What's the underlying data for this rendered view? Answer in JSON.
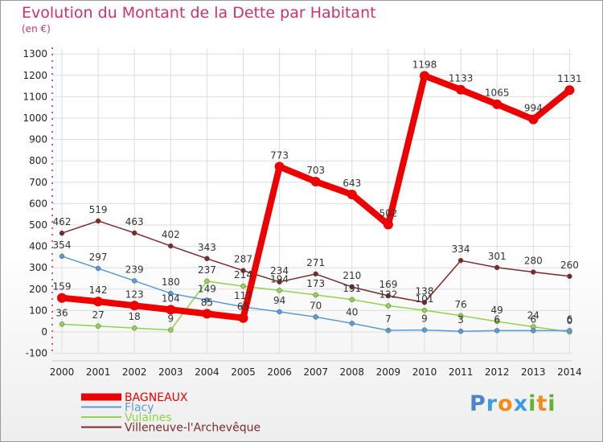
{
  "header": {
    "title": "Evolution du Montant de la Dette par Habitant",
    "unit": "(en €)"
  },
  "logo": {
    "text": "Proxiti",
    "letters": [
      {
        "ch": "P",
        "color": "#4a86c8"
      },
      {
        "ch": "r",
        "color": "#3a9ee0"
      },
      {
        "ch": "o",
        "color": "#f28c1e"
      },
      {
        "ch": "x",
        "color": "#3a9ee0"
      },
      {
        "ch": "i",
        "color": "#66b032"
      },
      {
        "ch": "t",
        "color": "#f28c1e"
      },
      {
        "ch": "i",
        "color": "#66b032"
      }
    ]
  },
  "chart_data": {
    "type": "line",
    "title": "Evolution du Montant de la Dette par Habitant",
    "subtitle": "(en €)",
    "x": [
      "2000",
      "2001",
      "2002",
      "2003",
      "2004",
      "2005",
      "2006",
      "2007",
      "2008",
      "2009",
      "2010",
      "2011",
      "2012",
      "2013",
      "2014"
    ],
    "ylim": [
      -100,
      1300
    ],
    "yticks": [
      -100,
      0,
      100,
      200,
      300,
      400,
      500,
      600,
      700,
      800,
      900,
      1000,
      1100,
      1200,
      1300
    ],
    "grid": true,
    "legend_position": "bottom-left",
    "series": [
      {
        "name": "BAGNEAUX",
        "color": "#ee0000",
        "width": 8,
        "marker": 6,
        "labels": true,
        "values": [
          159,
          142,
          123,
          104,
          85,
          65,
          773,
          703,
          643,
          502,
          1198,
          1133,
          1065,
          994,
          1131
        ]
      },
      {
        "name": "Flacy",
        "color": "#5b9bd5",
        "width": 1.5,
        "marker": 3,
        "labels": true,
        "values": [
          354,
          297,
          239,
          180,
          149,
          117,
          94,
          70,
          40,
          7,
          9,
          3,
          6,
          6,
          6
        ]
      },
      {
        "name": "Vulaines",
        "color": "#8fd44a",
        "width": 1.5,
        "marker": 3,
        "labels": true,
        "values": [
          36,
          27,
          18,
          9,
          237,
          214,
          194,
          173,
          151,
          122,
          101,
          76,
          49,
          24,
          0
        ]
      },
      {
        "name": "Villeneuve-l'Archevêque",
        "color": "#7a2a2a",
        "width": 1.5,
        "marker": 3,
        "labels": true,
        "values": [
          462,
          519,
          463,
          402,
          343,
          287,
          234,
          271,
          210,
          169,
          138,
          334,
          301,
          280,
          260
        ]
      }
    ]
  }
}
